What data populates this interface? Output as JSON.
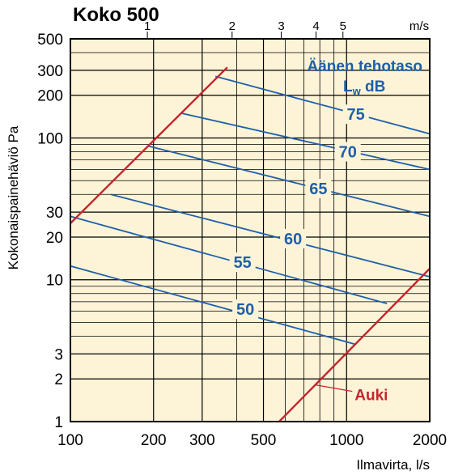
{
  "title": "Koko 500",
  "colors": {
    "plot_background": "#fdf4d8",
    "grid": "#000000",
    "sound_lines": "#1f5fa8",
    "open_line": "#c4262e"
  },
  "chart_data": {
    "type": "line",
    "x_scale": "log",
    "y_scale": "log",
    "xlabel": "Ilmavirta, l/s",
    "ylabel": "Kokonaispainehäviö Pa",
    "xlim": [
      100,
      2000
    ],
    "ylim": [
      1,
      500
    ],
    "x_ticks": [
      100,
      200,
      300,
      500,
      1000,
      2000
    ],
    "x_tick_labels": [
      "100",
      "200",
      "300",
      "500",
      "1000",
      "2000"
    ],
    "y_ticks": [
      1,
      2,
      3,
      10,
      20,
      30,
      100,
      200,
      300,
      500
    ],
    "y_tick_labels": [
      "1",
      "2",
      "3",
      "10",
      "20",
      "30",
      "100",
      "200",
      "300",
      "500"
    ],
    "velocity_axis": {
      "unit_label": "m/s",
      "ticks": [
        {
          "label": "1",
          "flow": 190
        },
        {
          "label": "2",
          "flow": 385
        },
        {
          "label": "3",
          "flow": 580
        },
        {
          "label": "4",
          "flow": 775
        },
        {
          "label": "5",
          "flow": 970
        }
      ]
    },
    "sound_legend": {
      "title": "Äänen tehotaso",
      "symbol_main": "L",
      "symbol_sub": "w",
      "unit": "dB"
    },
    "series": [
      {
        "name": "50",
        "color": "#1f5fa8",
        "points": [
          [
            100,
            12.5
          ],
          [
            1080,
            3.5
          ]
        ],
        "label_at": [
          430,
          6.2
        ]
      },
      {
        "name": "55",
        "color": "#1f5fa8",
        "points": [
          [
            100,
            28
          ],
          [
            1400,
            6.8
          ]
        ],
        "label_at": [
          420,
          13.3
        ]
      },
      {
        "name": "60",
        "color": "#1f5fa8",
        "points": [
          [
            140,
            40
          ],
          [
            2000,
            10.5
          ]
        ],
        "label_at": [
          640,
          19.5
        ]
      },
      {
        "name": "65",
        "color": "#1f5fa8",
        "points": [
          [
            190,
            88
          ],
          [
            2000,
            28
          ]
        ],
        "label_at": [
          790,
          44
        ]
      },
      {
        "name": "70",
        "color": "#1f5fa8",
        "points": [
          [
            250,
            150
          ],
          [
            2000,
            60
          ]
        ],
        "label_at": [
          1010,
          80
        ]
      },
      {
        "name": "75",
        "color": "#1f5fa8",
        "points": [
          [
            335,
            272
          ],
          [
            2000,
            107
          ]
        ],
        "label_at": [
          1080,
          147
        ]
      },
      {
        "name": "Auki",
        "color": "#c4262e",
        "points": [
          [
            100,
            25
          ],
          [
            370,
            315
          ]
        ],
        "label_at": null
      },
      {
        "name": "Auki",
        "color": "#c4262e",
        "points": [
          [
            570,
            1
          ],
          [
            2000,
            12
          ]
        ],
        "label_at": [
          1070,
          1.55
        ]
      }
    ]
  }
}
